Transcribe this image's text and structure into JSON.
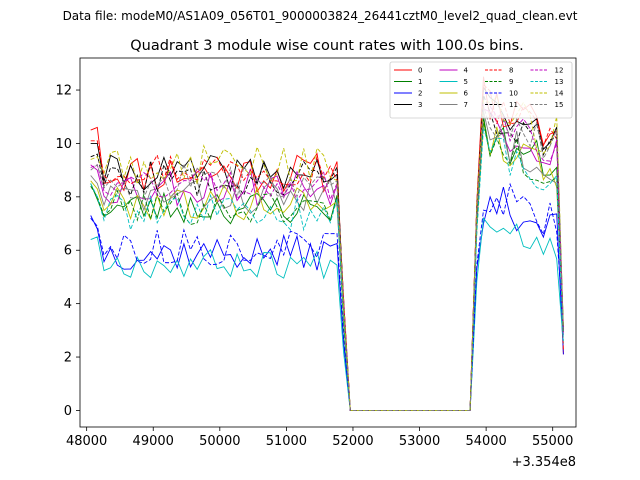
{
  "chart_data": {
    "type": "line",
    "suptitle": "Data file: modeM0/AS1A09_056T01_9000003824_26441cztM0_level2_quad_clean.evt",
    "title": "Quadrant 3 module wise count rates with 100.0s bins.",
    "xlabel": "",
    "ylabel": "",
    "offset_text": "+3.354e8",
    "xlim": [
      47900,
      55350
    ],
    "ylim": [
      -0.62,
      13.2
    ],
    "xticks": [
      48000,
      49000,
      50000,
      51000,
      52000,
      53000,
      54000,
      55000
    ],
    "xtick_labels": [
      "48000",
      "49000",
      "50000",
      "51000",
      "52000",
      "53000",
      "54000",
      "55000"
    ],
    "yticks": [
      0,
      2,
      4,
      6,
      8,
      10,
      12
    ],
    "ytick_labels": [
      "0",
      "2",
      "4",
      "6",
      "8",
      "10",
      "12"
    ],
    "legend_location": "upper right",
    "x_start": 48060,
    "dx": 100,
    "gap": {
      "off_start": 51960,
      "off_end": 53760
    },
    "end_x": 55160,
    "end_values": [
      2.1,
      3.0,
      2.1,
      3.0,
      3.0,
      2.5,
      3.2,
      3.0,
      2.2,
      2.9,
      3.0,
      3.0,
      2.8,
      2.6,
      3.1,
      3.0
    ],
    "series": [
      {
        "name": "0",
        "color": "#ff0000",
        "dash": "solid",
        "base": 8.9,
        "post_base": 11.1,
        "first": 10.5,
        "second": 10.6,
        "post_first": 12.5,
        "variability": 0.35,
        "seed": 11
      },
      {
        "name": "1",
        "color": "#008000",
        "dash": "solid",
        "base": 7.6,
        "post_base": 9.9,
        "first": 8.5,
        "second": 7.9,
        "post_first": 11.0,
        "variability": 0.3,
        "seed": 23
      },
      {
        "name": "2",
        "color": "#0000ff",
        "dash": "solid",
        "base": 5.9,
        "post_base": 7.6,
        "first": 7.3,
        "second": 6.8,
        "post_first": 7.0,
        "variability": 0.3,
        "seed": 37
      },
      {
        "name": "3",
        "color": "#000000",
        "dash": "solid",
        "base": 8.9,
        "post_base": 10.9,
        "first": 10.0,
        "second": 10.0,
        "post_first": 12.1,
        "variability": 0.3,
        "seed": 41
      },
      {
        "name": "4",
        "color": "#bf00bf",
        "dash": "solid",
        "base": 8.4,
        "post_base": 10.5,
        "first": 9.2,
        "second": 9.0,
        "post_first": 11.3,
        "variability": 0.35,
        "seed": 53
      },
      {
        "name": "5",
        "color": "#00bfbf",
        "dash": "solid",
        "base": 5.5,
        "post_base": 6.9,
        "first": 6.4,
        "second": 6.5,
        "post_first": 7.2,
        "variability": 0.25,
        "seed": 67
      },
      {
        "name": "6",
        "color": "#bfbf00",
        "dash": "solid",
        "base": 7.8,
        "post_base": 9.8,
        "first": 8.6,
        "second": 8.3,
        "post_first": 10.8,
        "variability": 0.3,
        "seed": 79
      },
      {
        "name": "7",
        "color": "#808080",
        "dash": "solid",
        "base": 8.0,
        "post_base": 10.0,
        "first": 8.8,
        "second": 8.5,
        "post_first": 11.2,
        "variability": 0.3,
        "seed": 83
      },
      {
        "name": "8",
        "color": "#ff0000",
        "dash": "dashed",
        "base": 9.1,
        "post_base": 11.1,
        "first": 10.1,
        "second": 10.1,
        "post_first": 12.2,
        "variability": 0.3,
        "seed": 97
      },
      {
        "name": "9",
        "color": "#008000",
        "dash": "dashed",
        "base": 7.6,
        "post_base": 9.7,
        "first": 8.4,
        "second": 8.0,
        "post_first": 10.9,
        "variability": 0.3,
        "seed": 101
      },
      {
        "name": "10",
        "color": "#0000ff",
        "dash": "dashed",
        "base": 6.1,
        "post_base": 7.8,
        "first": 7.2,
        "second": 6.9,
        "post_first": 7.5,
        "variability": 0.3,
        "seed": 113
      },
      {
        "name": "11",
        "color": "#000000",
        "dash": "dashed",
        "base": 8.7,
        "post_base": 10.8,
        "first": 9.5,
        "second": 9.6,
        "post_first": 11.8,
        "variability": 0.3,
        "seed": 127
      },
      {
        "name": "12",
        "color": "#bf00bf",
        "dash": "dashed",
        "base": 8.5,
        "post_base": 10.6,
        "first": 9.1,
        "second": 9.2,
        "post_first": 11.5,
        "variability": 0.3,
        "seed": 131
      },
      {
        "name": "13",
        "color": "#00bfbf",
        "dash": "dashed",
        "base": 7.4,
        "post_base": 9.5,
        "first": 8.5,
        "second": 8.0,
        "post_first": 10.6,
        "variability": 0.3,
        "seed": 139
      },
      {
        "name": "14",
        "color": "#bfbf00",
        "dash": "dashed",
        "base": 9.2,
        "post_base": 11.0,
        "first": 9.4,
        "second": 9.5,
        "post_first": 11.6,
        "variability": 0.35,
        "seed": 149
      },
      {
        "name": "15",
        "color": "#808080",
        "dash": "dashed",
        "base": 8.6,
        "post_base": 10.7,
        "first": 9.0,
        "second": 9.2,
        "post_first": 11.4,
        "variability": 0.3,
        "seed": 157
      }
    ]
  }
}
